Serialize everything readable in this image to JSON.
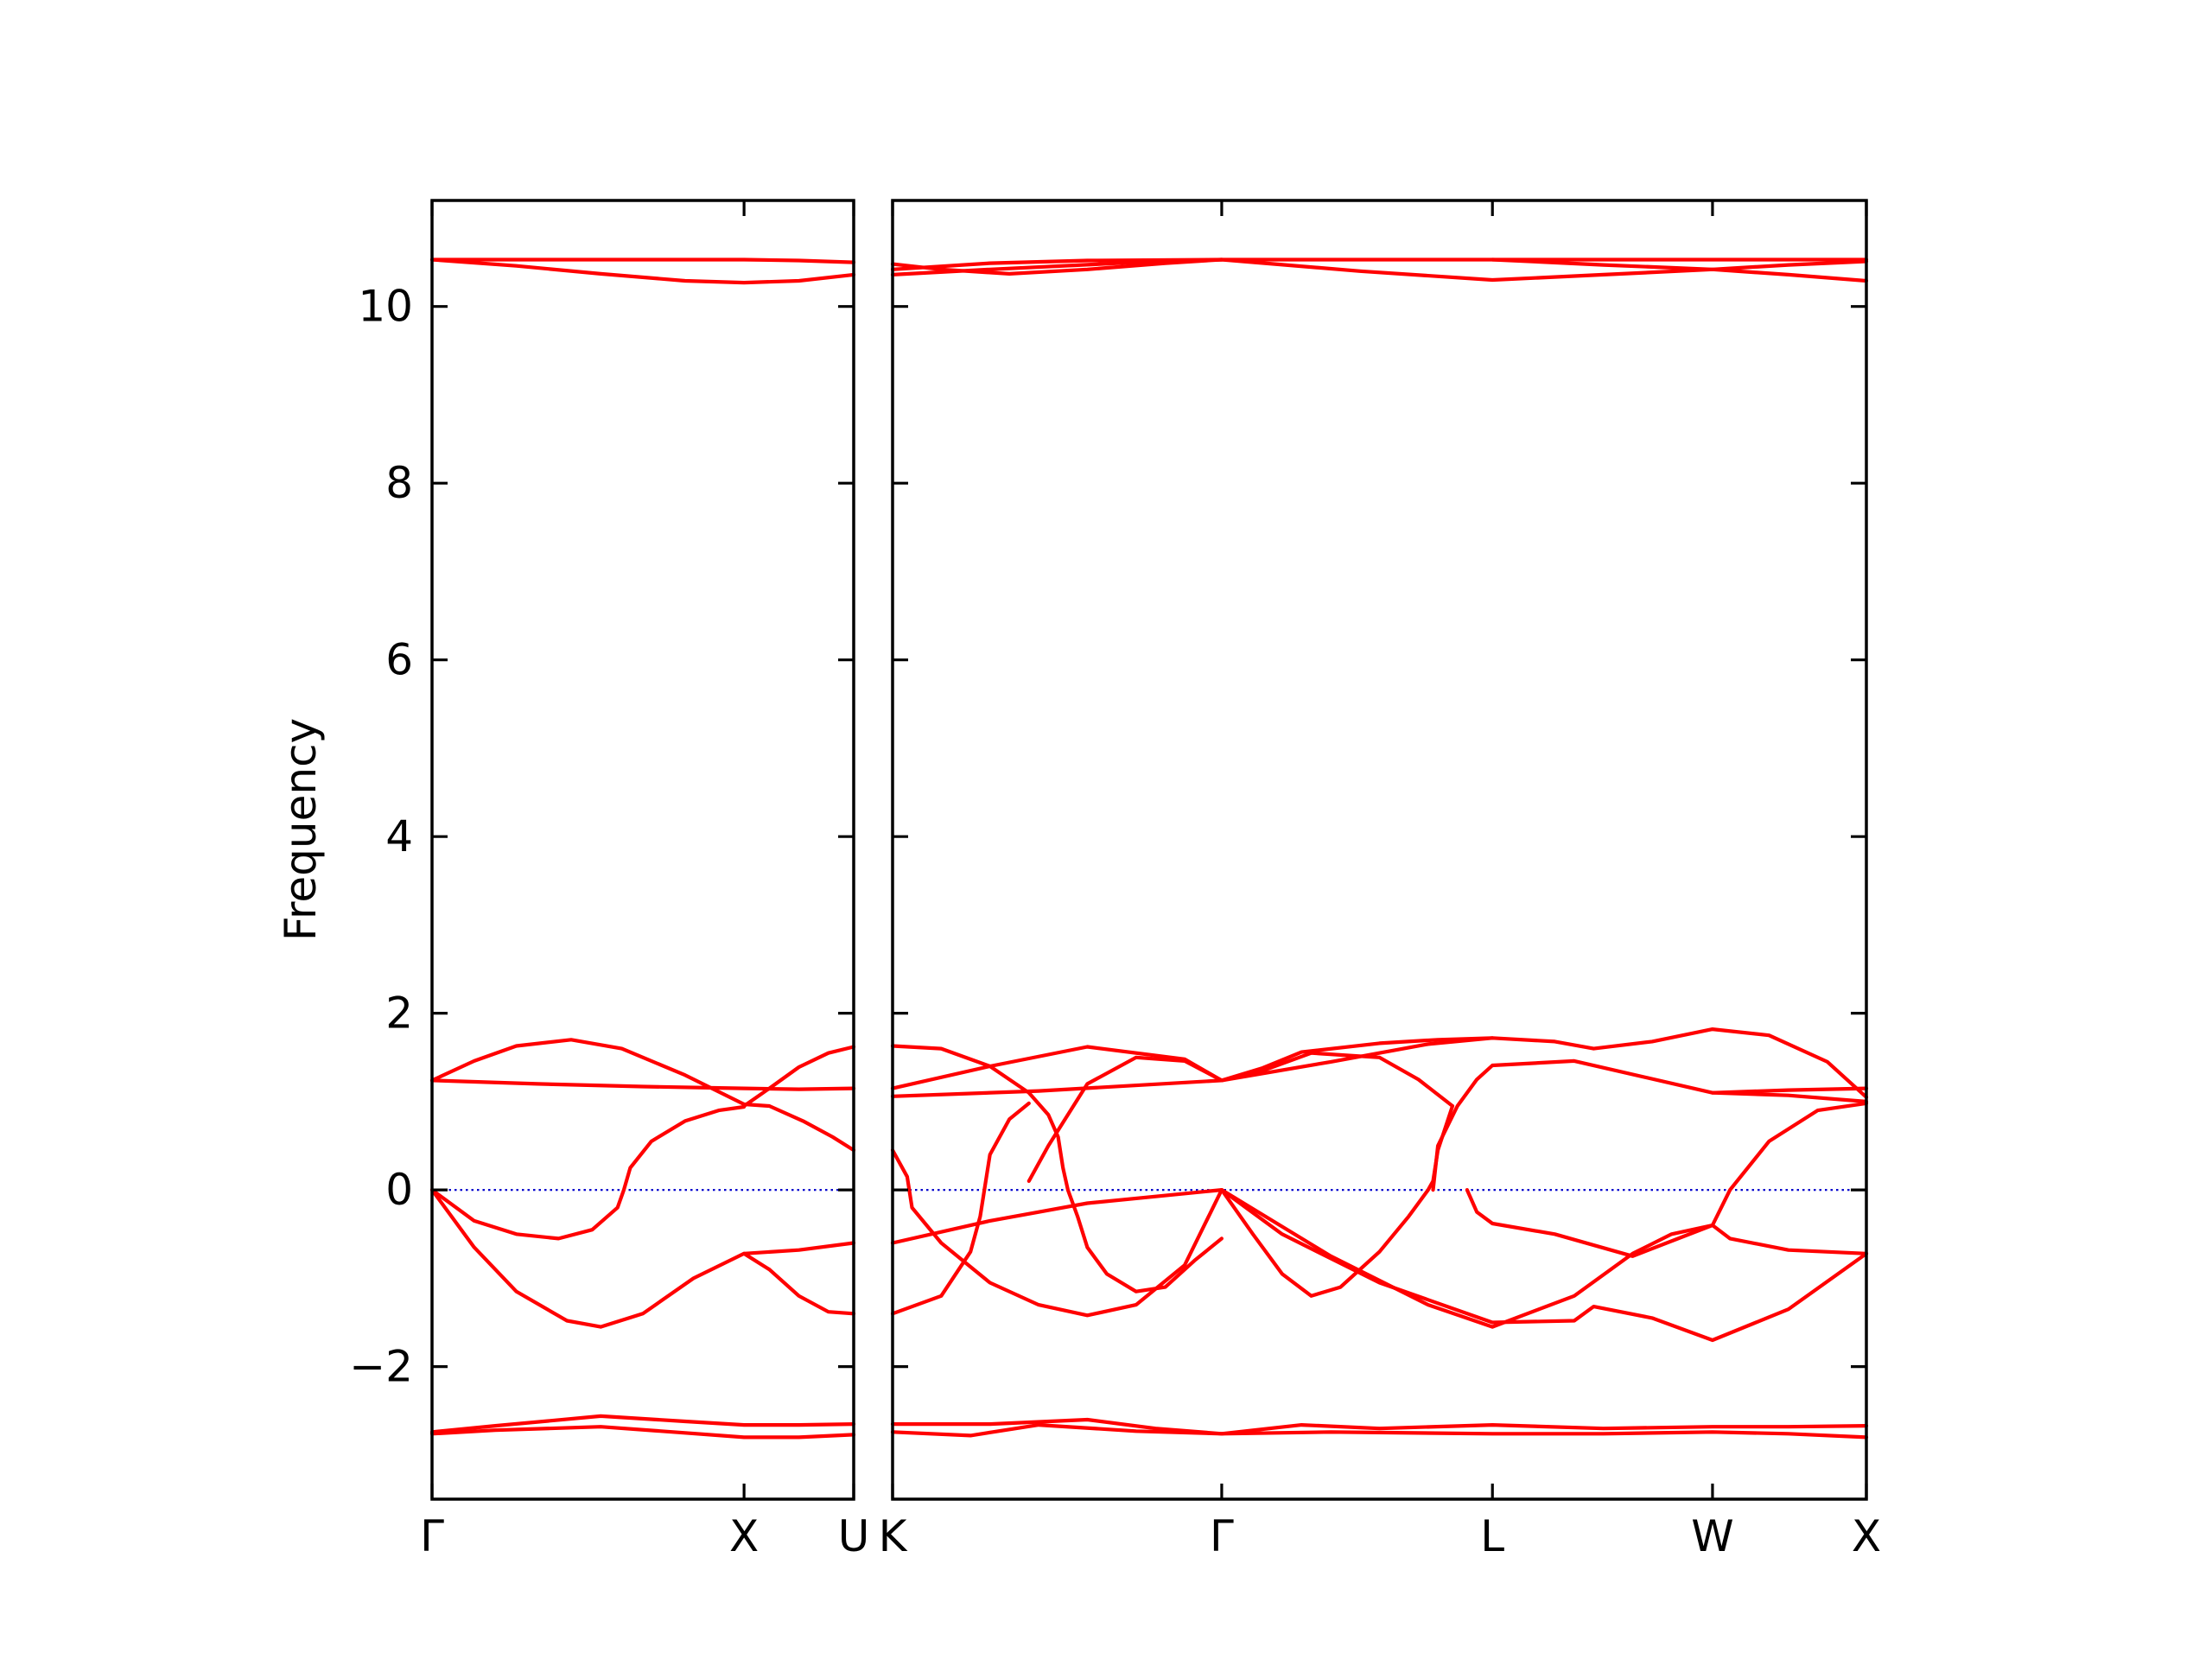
{
  "chart_data": {
    "type": "line",
    "title": "",
    "ylabel": "Frequency",
    "xlabel": "",
    "ylim": [
      -3.5,
      11.2
    ],
    "yticks": [
      -2,
      0,
      2,
      4,
      6,
      8,
      10
    ],
    "ytick_labels": [
      "−2",
      "0",
      "2",
      "4",
      "6",
      "8",
      "10"
    ],
    "grid": false,
    "legend": "none",
    "line_color": "#ff0000",
    "zero_line_color": "#0000cc",
    "panels": [
      {
        "name": "path-gamma-x-u",
        "xlim": [
          0,
          1
        ],
        "ticks": [
          {
            "x": 0.0,
            "label": "Γ"
          },
          {
            "x": 0.74,
            "label": "X"
          },
          {
            "x": 1.0,
            "label": "U"
          }
        ],
        "bands": [
          [
            [
              0,
              10.53
            ],
            [
              0.2,
              10.53
            ],
            [
              0.4,
              10.53
            ],
            [
              0.6,
              10.53
            ],
            [
              0.74,
              10.53
            ],
            [
              0.87,
              10.52
            ],
            [
              1,
              10.5
            ]
          ],
          [
            [
              0,
              10.53
            ],
            [
              0.2,
              10.46
            ],
            [
              0.4,
              10.37
            ],
            [
              0.6,
              10.29
            ],
            [
              0.74,
              10.27
            ],
            [
              0.87,
              10.29
            ],
            [
              1,
              10.36
            ]
          ],
          [
            [
              0,
              1.24
            ],
            [
              0.1,
              1.46
            ],
            [
              0.2,
              1.63
            ],
            [
              0.33,
              1.7
            ],
            [
              0.45,
              1.6
            ],
            [
              0.6,
              1.3
            ],
            [
              0.74,
              0.97
            ],
            [
              0.8,
              0.95
            ],
            [
              0.88,
              0.78
            ],
            [
              0.95,
              0.6
            ],
            [
              1,
              0.45
            ]
          ],
          [
            [
              0,
              1.24
            ],
            [
              0.25,
              1.2
            ],
            [
              0.5,
              1.17
            ],
            [
              0.74,
              1.15
            ],
            [
              0.87,
              1.14
            ],
            [
              1,
              1.15
            ]
          ],
          [
            [
              0.74,
              0.95
            ],
            [
              0.8,
              1.15
            ],
            [
              0.87,
              1.39
            ],
            [
              0.94,
              1.55
            ],
            [
              1,
              1.62
            ]
          ],
          [
            [
              0,
              0
            ],
            [
              0.1,
              -0.35
            ],
            [
              0.2,
              -0.5
            ],
            [
              0.3,
              -0.55
            ],
            [
              0.38,
              -0.45
            ],
            [
              0.44,
              -0.2
            ],
            [
              0.455,
              0
            ],
            [
              0.47,
              0.25
            ],
            [
              0.52,
              0.55
            ],
            [
              0.6,
              0.78
            ],
            [
              0.68,
              0.9
            ],
            [
              0.74,
              0.94
            ]
          ],
          [
            [
              0,
              0
            ],
            [
              0.1,
              -0.65
            ],
            [
              0.2,
              -1.15
            ],
            [
              0.32,
              -1.48
            ],
            [
              0.4,
              -1.55
            ],
            [
              0.5,
              -1.4
            ],
            [
              0.62,
              -1.0
            ],
            [
              0.74,
              -0.72
            ],
            [
              0.8,
              -0.9
            ],
            [
              0.87,
              -1.2
            ],
            [
              0.94,
              -1.38
            ],
            [
              1,
              -1.4
            ]
          ],
          [
            [
              0.74,
              -0.72
            ],
            [
              0.87,
              -0.68
            ],
            [
              1,
              -0.6
            ]
          ],
          [
            [
              0,
              -2.74
            ],
            [
              0.15,
              -2.67
            ],
            [
              0.4,
              -2.56
            ],
            [
              0.6,
              -2.62
            ],
            [
              0.74,
              -2.66
            ],
            [
              0.87,
              -2.66
            ],
            [
              1,
              -2.65
            ]
          ],
          [
            [
              0,
              -2.76
            ],
            [
              0.15,
              -2.72
            ],
            [
              0.4,
              -2.68
            ],
            [
              0.6,
              -2.75
            ],
            [
              0.74,
              -2.8
            ],
            [
              0.87,
              -2.8
            ],
            [
              1,
              -2.77
            ]
          ]
        ]
      },
      {
        "name": "path-k-gamma-l-w-x",
        "xlim": [
          0,
          1
        ],
        "ticks": [
          {
            "x": 0.0,
            "label": "K"
          },
          {
            "x": 0.338,
            "label": "Γ"
          },
          {
            "x": 0.616,
            "label": "L"
          },
          {
            "x": 0.842,
            "label": "W"
          },
          {
            "x": 1.0,
            "label": "X"
          }
        ],
        "bands": [
          [
            [
              0,
              10.42
            ],
            [
              0.1,
              10.49
            ],
            [
              0.2,
              10.52
            ],
            [
              0.338,
              10.53
            ],
            [
              0.45,
              10.53
            ],
            [
              0.616,
              10.53
            ],
            [
              0.75,
              10.53
            ],
            [
              0.842,
              10.53
            ],
            [
              0.92,
              10.53
            ],
            [
              1,
              10.53
            ]
          ],
          [
            [
              0,
              10.48
            ],
            [
              0.05,
              10.42
            ],
            [
              0.12,
              10.37
            ],
            [
              0.2,
              10.42
            ],
            [
              0.28,
              10.49
            ],
            [
              0.338,
              10.53
            ],
            [
              0.48,
              10.4
            ],
            [
              0.616,
              10.3
            ],
            [
              0.73,
              10.36
            ],
            [
              0.842,
              10.42
            ],
            [
              0.92,
              10.36
            ],
            [
              1,
              10.29
            ]
          ],
          [
            [
              0,
              10.36
            ],
            [
              0.1,
              10.42
            ],
            [
              0.25,
              10.5
            ],
            [
              0.338,
              10.53
            ]
          ],
          [
            [
              0.616,
              10.53
            ],
            [
              0.73,
              10.47
            ],
            [
              0.842,
              10.42
            ],
            [
              0.92,
              10.47
            ],
            [
              1,
              10.51
            ]
          ],
          [
            [
              0,
              1.63
            ],
            [
              0.05,
              1.6
            ],
            [
              0.1,
              1.4
            ],
            [
              0.14,
              1.1
            ],
            [
              0.16,
              0.85
            ],
            [
              0.17,
              0.6
            ],
            [
              0.175,
              0.25
            ],
            [
              0.18,
              0
            ],
            [
              0.19,
              -0.3
            ],
            [
              0.2,
              -0.65
            ],
            [
              0.22,
              -0.95
            ],
            [
              0.25,
              -1.15
            ],
            [
              0.28,
              -1.1
            ],
            [
              0.31,
              -0.8
            ],
            [
              0.338,
              -0.55
            ]
          ],
          [
            [
              0,
              1.15
            ],
            [
              0.1,
              1.4
            ],
            [
              0.2,
              1.62
            ],
            [
              0.3,
              1.48
            ],
            [
              0.338,
              1.24
            ],
            [
              0.38,
              1.35
            ],
            [
              0.43,
              1.55
            ],
            [
              0.5,
              1.5
            ],
            [
              0.54,
              1.25
            ],
            [
              0.575,
              0.95
            ]
          ],
          [
            [
              0,
              1.06
            ],
            [
              0.15,
              1.12
            ],
            [
              0.338,
              1.24
            ],
            [
              0.45,
              1.45
            ],
            [
              0.55,
              1.65
            ],
            [
              0.616,
              1.72
            ],
            [
              0.68,
              1.68
            ],
            [
              0.72,
              1.6
            ],
            [
              0.78,
              1.68
            ],
            [
              0.842,
              1.82
            ],
            [
              0.9,
              1.75
            ],
            [
              0.96,
              1.45
            ],
            [
              1,
              1.05
            ]
          ],
          [
            [
              0.14,
              0.1
            ],
            [
              0.16,
              0.5
            ],
            [
              0.2,
              1.2
            ],
            [
              0.25,
              1.5
            ],
            [
              0.3,
              1.46
            ],
            [
              0.338,
              1.24
            ],
            [
              0.38,
              1.38
            ],
            [
              0.42,
              1.56
            ],
            [
              0.5,
              1.66
            ],
            [
              0.56,
              1.7
            ],
            [
              0.616,
              1.72
            ]
          ],
          [
            [
              0.555,
              0
            ],
            [
              0.56,
              0.5
            ],
            [
              0.58,
              0.95
            ],
            [
              0.6,
              1.25
            ],
            [
              0.616,
              1.41
            ],
            [
              0.7,
              1.46
            ],
            [
              0.842,
              1.1
            ],
            [
              0.92,
              1.13
            ],
            [
              1,
              1.15
            ]
          ],
          [
            [
              0.842,
              1.1
            ],
            [
              0.92,
              1.07
            ],
            [
              1,
              1.0
            ]
          ],
          [
            [
              0,
              0.45
            ],
            [
              0.015,
              0.15
            ],
            [
              0.02,
              -0.2
            ],
            [
              0.05,
              -0.6
            ],
            [
              0.1,
              -1.05
            ],
            [
              0.15,
              -1.3
            ],
            [
              0.2,
              -1.42
            ],
            [
              0.25,
              -1.3
            ],
            [
              0.3,
              -0.85
            ],
            [
              0.338,
              0
            ]
          ],
          [
            [
              0,
              -1.4
            ],
            [
              0.05,
              -1.2
            ],
            [
              0.08,
              -0.7
            ],
            [
              0.09,
              -0.3
            ],
            [
              0.1,
              0.4
            ],
            [
              0.12,
              0.8
            ],
            [
              0.14,
              0.98
            ]
          ],
          [
            [
              0.338,
              0
            ],
            [
              0.37,
              -0.5
            ],
            [
              0.4,
              -0.95
            ],
            [
              0.43,
              -1.2
            ],
            [
              0.46,
              -1.1
            ],
            [
              0.5,
              -0.7
            ],
            [
              0.53,
              -0.3
            ],
            [
              0.55,
              0
            ],
            [
              0.555,
              0.1
            ],
            [
              0.56,
              0.45
            ],
            [
              0.575,
              0.95
            ]
          ],
          [
            [
              0,
              -0.6
            ],
            [
              0.1,
              -0.35
            ],
            [
              0.2,
              -0.15
            ],
            [
              0.338,
              0
            ]
          ],
          [
            [
              0.338,
              0
            ],
            [
              0.4,
              -0.5
            ],
            [
              0.5,
              -1.05
            ],
            [
              0.616,
              -1.5
            ],
            [
              0.7,
              -1.48
            ],
            [
              0.72,
              -1.32
            ],
            [
              0.78,
              -1.45
            ],
            [
              0.842,
              -1.7
            ],
            [
              0.92,
              -1.35
            ],
            [
              1,
              -0.72
            ]
          ],
          [
            [
              0.338,
              0
            ],
            [
              0.45,
              -0.75
            ],
            [
              0.55,
              -1.3
            ],
            [
              0.616,
              -1.55
            ],
            [
              0.7,
              -1.2
            ],
            [
              0.76,
              -0.72
            ],
            [
              0.8,
              -0.5
            ],
            [
              0.842,
              -0.4
            ],
            [
              0.86,
              0
            ],
            [
              0.9,
              0.55
            ],
            [
              0.95,
              0.9
            ],
            [
              1,
              0.98
            ]
          ],
          [
            [
              0.59,
              0
            ],
            [
              0.6,
              -0.25
            ],
            [
              0.616,
              -0.38
            ],
            [
              0.68,
              -0.5
            ],
            [
              0.76,
              -0.75
            ],
            [
              0.842,
              -0.4
            ],
            [
              0.86,
              -0.55
            ],
            [
              0.92,
              -0.68
            ],
            [
              1,
              -0.72
            ]
          ],
          [
            [
              0,
              -2.65
            ],
            [
              0.1,
              -2.65
            ],
            [
              0.2,
              -2.6
            ],
            [
              0.27,
              -2.7
            ],
            [
              0.338,
              -2.76
            ],
            [
              0.42,
              -2.66
            ],
            [
              0.5,
              -2.7
            ],
            [
              0.616,
              -2.66
            ],
            [
              0.73,
              -2.7
            ],
            [
              0.842,
              -2.68
            ],
            [
              0.92,
              -2.68
            ],
            [
              1,
              -2.67
            ]
          ],
          [
            [
              0,
              -2.74
            ],
            [
              0.08,
              -2.78
            ],
            [
              0.15,
              -2.66
            ],
            [
              0.25,
              -2.73
            ],
            [
              0.338,
              -2.76
            ],
            [
              0.45,
              -2.74
            ],
            [
              0.616,
              -2.76
            ],
            [
              0.73,
              -2.76
            ],
            [
              0.842,
              -2.74
            ],
            [
              0.92,
              -2.76
            ],
            [
              1,
              -2.8
            ]
          ]
        ]
      }
    ]
  }
}
